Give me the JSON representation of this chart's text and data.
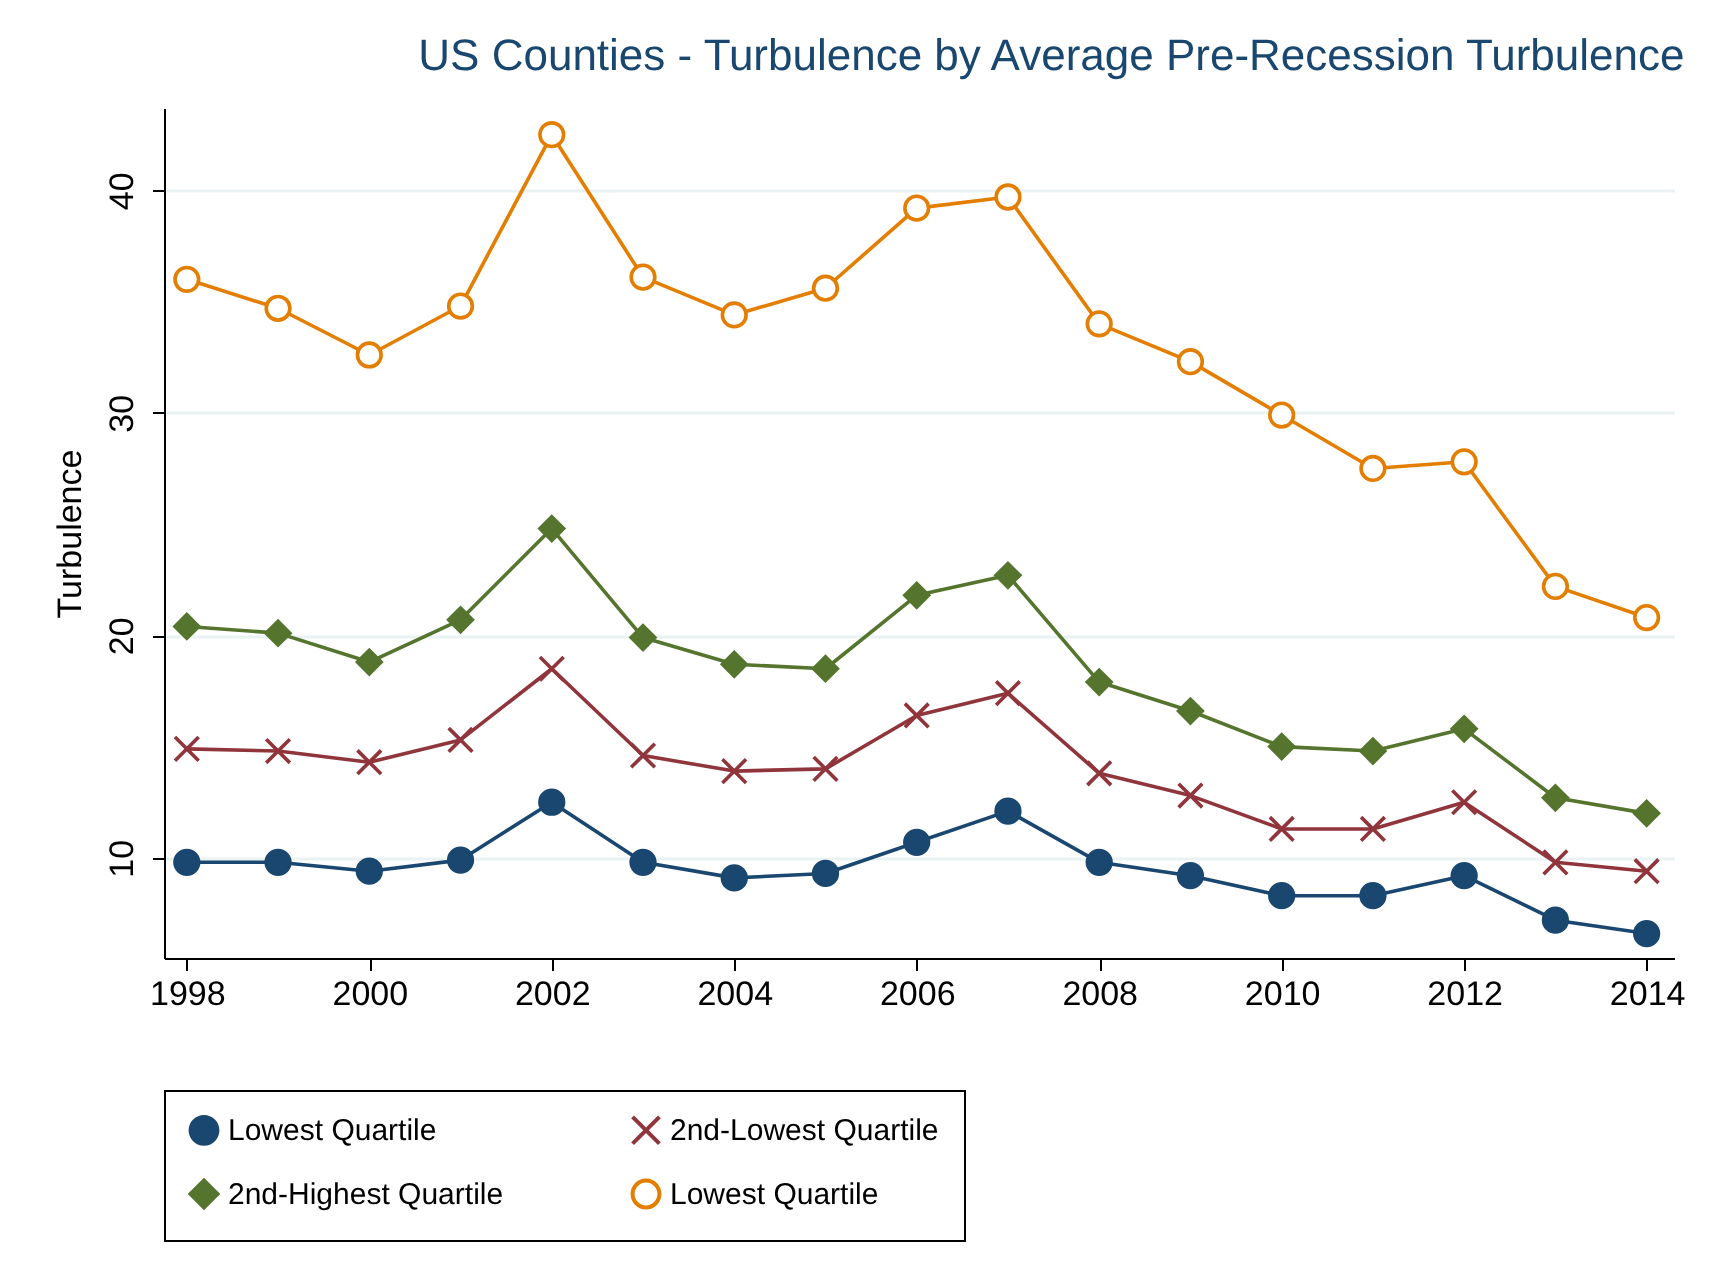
{
  "chart_data": {
    "type": "line",
    "title": "US Counties - Turbulence by Average Pre-Recession Turbulence",
    "ylabel": "Turbulence",
    "x": [
      1998,
      1999,
      2000,
      2001,
      2002,
      2003,
      2004,
      2005,
      2006,
      2007,
      2008,
      2009,
      2010,
      2011,
      2012,
      2013,
      2014
    ],
    "series": [
      {
        "name": "Lowest Quartile",
        "color": "#1a476f",
        "marker": "circle",
        "values": [
          9.8,
          9.8,
          9.4,
          9.9,
          12.5,
          9.8,
          9.1,
          9.3,
          10.7,
          12.1,
          9.8,
          9.2,
          8.3,
          8.3,
          9.2,
          7.2,
          6.6
        ]
      },
      {
        "name": "2nd-Lowest Quartile",
        "color": "#90353b",
        "marker": "cross",
        "values": [
          14.9,
          14.8,
          14.3,
          15.3,
          18.5,
          14.6,
          13.9,
          14.0,
          16.4,
          17.4,
          13.8,
          12.8,
          11.3,
          11.3,
          12.5,
          9.8,
          9.4
        ]
      },
      {
        "name": "2nd-Highest Quartile",
        "color": "#55752f",
        "marker": "diamond",
        "values": [
          20.4,
          20.1,
          18.8,
          20.7,
          24.8,
          19.9,
          18.7,
          18.5,
          21.8,
          22.7,
          17.9,
          16.6,
          15.0,
          14.8,
          15.8,
          12.7,
          12.0
        ]
      },
      {
        "name": "Lowest Quartile",
        "color": "#e37e00",
        "marker": "circle",
        "values": [
          36.0,
          34.7,
          32.6,
          34.8,
          42.5,
          36.1,
          34.4,
          35.6,
          39.2,
          39.7,
          34.0,
          32.3,
          29.9,
          27.5,
          27.8,
          22.2,
          20.8
        ]
      }
    ],
    "xlim": [
      1997.75,
      2014.3
    ],
    "xticks": [
      1998,
      2000,
      2002,
      2004,
      2006,
      2008,
      2010,
      2012,
      2014
    ],
    "ylim": [
      5.5,
      43.7
    ],
    "yticks": [
      10,
      20,
      30,
      40
    ],
    "grid": "y",
    "legend": "bottom"
  }
}
